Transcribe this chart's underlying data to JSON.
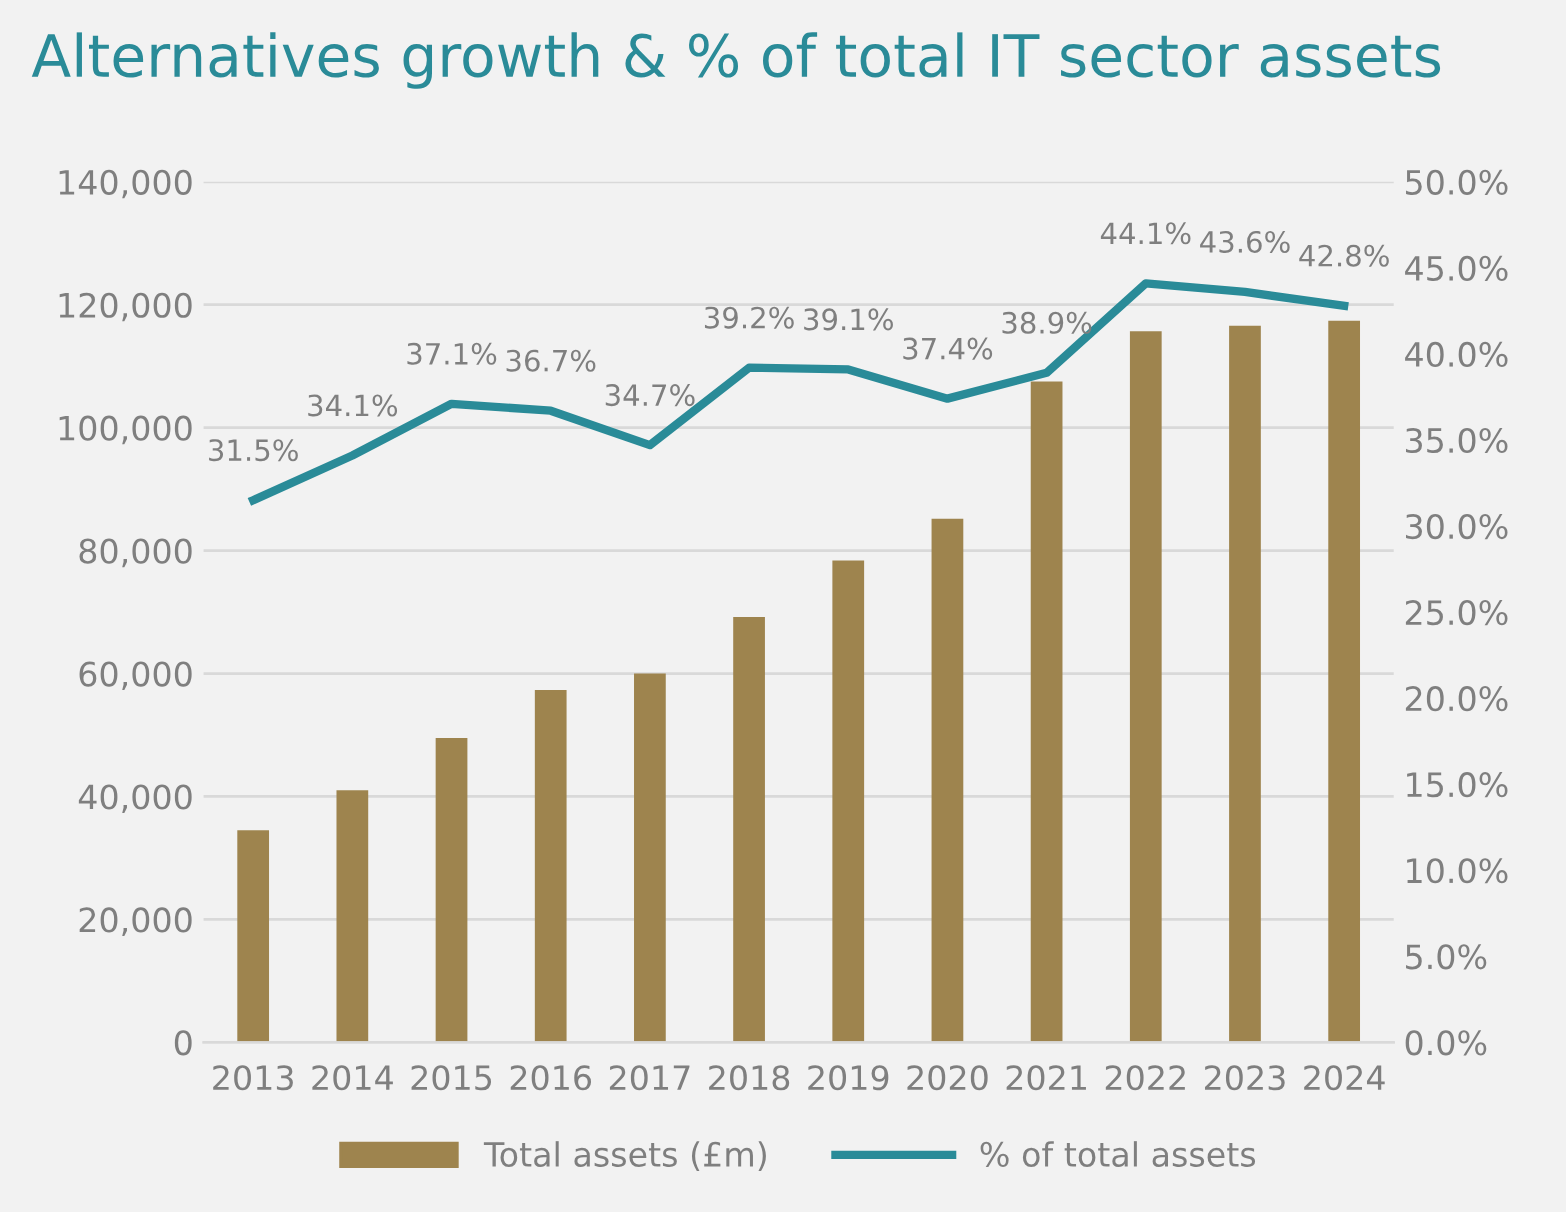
{
  "chart_data": {
    "type": "bar",
    "title": "Alternatives growth & % of total IT sector assets",
    "categories": [
      "2013",
      "2014",
      "2015",
      "2016",
      "2017",
      "2018",
      "2019",
      "2020",
      "2021",
      "2022",
      "2023",
      "2024"
    ],
    "series": [
      {
        "name": "Total assets (£m)",
        "color": "#9e844e",
        "values": [
          34500,
          41000,
          49500,
          57300,
          60000,
          69200,
          78400,
          85200,
          107500,
          115700,
          116600,
          117400
        ]
      },
      {
        "name": "% of total assets",
        "type": "line",
        "axis": "y2",
        "color": "#2a8b98",
        "values": [
          31.5,
          34.1,
          37.1,
          36.7,
          34.7,
          39.2,
          39.1,
          37.4,
          38.9,
          44.1,
          43.6,
          42.8
        ],
        "value_labels": [
          "31.5%",
          "34.1%",
          "37.1%",
          "36.7%",
          "34.7%",
          "39.2%",
          "39.1%",
          "37.4%",
          "38.9%",
          "44.1%",
          "43.6%",
          "42.8%"
        ]
      }
    ],
    "ylim": [
      0,
      140000
    ],
    "yticks": [
      {
        "value": 0,
        "label": "0"
      },
      {
        "value": 20000,
        "label": "20,000"
      },
      {
        "value": 40000,
        "label": "40,000"
      },
      {
        "value": 60000,
        "label": "60,000"
      },
      {
        "value": 80000,
        "label": "80,000"
      },
      {
        "value": 100000,
        "label": "100,000"
      },
      {
        "value": 120000,
        "label": "120,000"
      },
      {
        "value": 140000,
        "label": "140,000"
      }
    ],
    "y2lim": [
      0,
      50
    ],
    "y2ticks": [
      {
        "value": 0,
        "label": "0.0%"
      },
      {
        "value": 5,
        "label": "5.0%"
      },
      {
        "value": 10,
        "label": "10.0%"
      },
      {
        "value": 15,
        "label": "15.0%"
      },
      {
        "value": 20,
        "label": "20.0%"
      },
      {
        "value": 25,
        "label": "25.0%"
      },
      {
        "value": 30,
        "label": "30.0%"
      },
      {
        "value": 35,
        "label": "35.0%"
      },
      {
        "value": 40,
        "label": "40.0%"
      },
      {
        "value": 45,
        "label": "45.0%"
      },
      {
        "value": 50,
        "label": "50.0%"
      }
    ],
    "grid": "y",
    "legend": "bottom",
    "marker": "none",
    "line_style": "solid"
  }
}
